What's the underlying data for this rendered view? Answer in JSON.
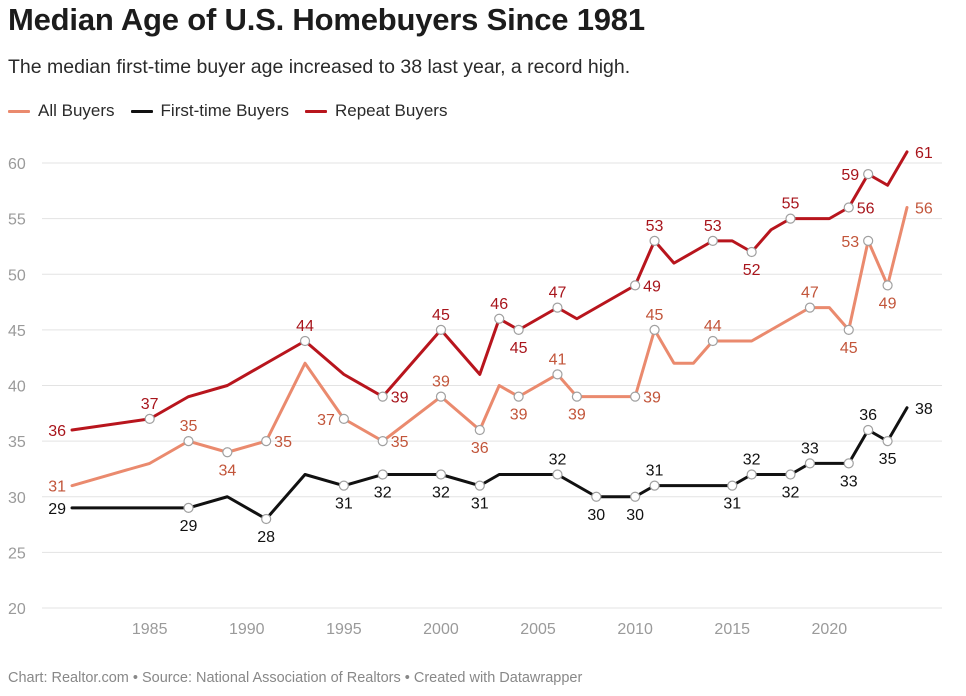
{
  "title": "Median Age of U.S. Homebuyers Since 1981",
  "subtitle": "The median first-time buyer age increased to 38 last year, a record high.",
  "footer": "Chart: Realtor.com • Source: National Association of Realtors • Created with Datawrapper",
  "colors": {
    "all": "#ea8a6e",
    "first": "#111111",
    "repeat": "#b8151d",
    "grid": "#e3e3e3",
    "tick": "#9a9a9a"
  },
  "chart_data": {
    "type": "line",
    "title": "Median Age of U.S. Homebuyers Since 1981",
    "xlabel": "",
    "ylabel": "",
    "xlim": [
      1981,
      2024
    ],
    "ylim": [
      20,
      60
    ],
    "x_ticks": [
      1985,
      1990,
      1995,
      2000,
      2005,
      2010,
      2015,
      2020
    ],
    "y_ticks": [
      20,
      25,
      30,
      35,
      40,
      45,
      50,
      55,
      60
    ],
    "legend": [
      "All Buyers",
      "First-time Buyers",
      "Repeat Buyers"
    ],
    "legend_position": "top-left",
    "series": [
      {
        "key": "all",
        "name": "All Buyers",
        "x": [
          1981,
          1985,
          1987,
          1989,
          1991,
          1993,
          1995,
          1997,
          2000,
          2002,
          2003,
          2004,
          2006,
          2007,
          2008,
          2010,
          2011,
          2012,
          2013,
          2014,
          2015,
          2016,
          2017,
          2018,
          2019,
          2020,
          2021,
          2022,
          2023,
          2024
        ],
        "values": [
          31,
          33,
          35,
          34,
          35,
          42,
          37,
          35,
          39,
          36,
          40,
          39,
          41,
          39,
          39,
          39,
          45,
          42,
          42,
          44,
          44,
          44,
          45,
          46,
          47,
          47,
          45,
          53,
          49,
          56
        ],
        "labels": [
          {
            "x": 1981,
            "text": "31",
            "pos": "left"
          },
          {
            "x": 1987,
            "text": "35",
            "pos": "above"
          },
          {
            "x": 1989,
            "text": "34",
            "pos": "below"
          },
          {
            "x": 1991,
            "text": "35",
            "pos": "right"
          },
          {
            "x": 1995,
            "text": "37",
            "pos": "left"
          },
          {
            "x": 1997,
            "text": "35",
            "pos": "right"
          },
          {
            "x": 2000,
            "text": "39",
            "pos": "above"
          },
          {
            "x": 2002,
            "text": "36",
            "pos": "below"
          },
          {
            "x": 2004,
            "text": "39",
            "pos": "below"
          },
          {
            "x": 2006,
            "text": "41",
            "pos": "above"
          },
          {
            "x": 2007,
            "text": "39",
            "pos": "below"
          },
          {
            "x": 2010,
            "text": "39",
            "pos": "right"
          },
          {
            "x": 2011,
            "text": "45",
            "pos": "above"
          },
          {
            "x": 2014,
            "text": "44",
            "pos": "above"
          },
          {
            "x": 2019,
            "text": "47",
            "pos": "above"
          },
          {
            "x": 2021,
            "text": "45",
            "pos": "below"
          },
          {
            "x": 2022,
            "text": "53",
            "pos": "left"
          },
          {
            "x": 2023,
            "text": "49",
            "pos": "below"
          },
          {
            "x": 2024,
            "text": "56",
            "pos": "right"
          }
        ]
      },
      {
        "key": "first",
        "name": "First-time Buyers",
        "x": [
          1981,
          1985,
          1987,
          1989,
          1991,
          1993,
          1995,
          1997,
          2000,
          2002,
          2003,
          2004,
          2006,
          2008,
          2010,
          2011,
          2012,
          2013,
          2014,
          2015,
          2016,
          2017,
          2018,
          2019,
          2020,
          2021,
          2022,
          2023,
          2024
        ],
        "values": [
          29,
          29,
          29,
          30,
          28,
          32,
          31,
          32,
          32,
          31,
          32,
          32,
          32,
          30,
          30,
          31,
          31,
          31,
          31,
          31,
          32,
          32,
          32,
          33,
          33,
          33,
          36,
          35,
          38
        ],
        "labels": [
          {
            "x": 1981,
            "text": "29",
            "pos": "left"
          },
          {
            "x": 1987,
            "text": "29",
            "pos": "below"
          },
          {
            "x": 1991,
            "text": "28",
            "pos": "below"
          },
          {
            "x": 1995,
            "text": "31",
            "pos": "below"
          },
          {
            "x": 1997,
            "text": "32",
            "pos": "below"
          },
          {
            "x": 2000,
            "text": "32",
            "pos": "below"
          },
          {
            "x": 2002,
            "text": "31",
            "pos": "below"
          },
          {
            "x": 2006,
            "text": "32",
            "pos": "above"
          },
          {
            "x": 2008,
            "text": "30",
            "pos": "below"
          },
          {
            "x": 2010,
            "text": "30",
            "pos": "below"
          },
          {
            "x": 2011,
            "text": "31",
            "pos": "above"
          },
          {
            "x": 2015,
            "text": "31",
            "pos": "below"
          },
          {
            "x": 2016,
            "text": "32",
            "pos": "above"
          },
          {
            "x": 2018,
            "text": "32",
            "pos": "below"
          },
          {
            "x": 2019,
            "text": "33",
            "pos": "above"
          },
          {
            "x": 2021,
            "text": "33",
            "pos": "below"
          },
          {
            "x": 2022,
            "text": "36",
            "pos": "above"
          },
          {
            "x": 2023,
            "text": "35",
            "pos": "below"
          },
          {
            "x": 2024,
            "text": "38",
            "pos": "right"
          }
        ]
      },
      {
        "key": "repeat",
        "name": "Repeat Buyers",
        "x": [
          1981,
          1985,
          1987,
          1989,
          1991,
          1993,
          1995,
          1997,
          2000,
          2002,
          2003,
          2004,
          2006,
          2007,
          2008,
          2010,
          2011,
          2012,
          2013,
          2014,
          2015,
          2016,
          2017,
          2018,
          2019,
          2020,
          2021,
          2022,
          2023,
          2024
        ],
        "values": [
          36,
          37,
          39,
          40,
          42,
          44,
          41,
          39,
          45,
          41,
          46,
          45,
          47,
          46,
          47,
          49,
          53,
          51,
          52,
          53,
          53,
          52,
          54,
          55,
          55,
          55,
          56,
          59,
          58,
          61
        ],
        "labels": [
          {
            "x": 1981,
            "text": "36",
            "pos": "left"
          },
          {
            "x": 1985,
            "text": "37",
            "pos": "above"
          },
          {
            "x": 1993,
            "text": "44",
            "pos": "above"
          },
          {
            "x": 1997,
            "text": "39",
            "pos": "right"
          },
          {
            "x": 2000,
            "text": "45",
            "pos": "above"
          },
          {
            "x": 2003,
            "text": "46",
            "pos": "above"
          },
          {
            "x": 2004,
            "text": "45",
            "pos": "below"
          },
          {
            "x": 2006,
            "text": "47",
            "pos": "above"
          },
          {
            "x": 2010,
            "text": "49",
            "pos": "right"
          },
          {
            "x": 2011,
            "text": "53",
            "pos": "above"
          },
          {
            "x": 2014,
            "text": "53",
            "pos": "above"
          },
          {
            "x": 2016,
            "text": "52",
            "pos": "below"
          },
          {
            "x": 2018,
            "text": "55",
            "pos": "above"
          },
          {
            "x": 2021,
            "text": "56",
            "pos": "right"
          },
          {
            "x": 2022,
            "text": "59",
            "pos": "left"
          },
          {
            "x": 2024,
            "text": "61",
            "pos": "right"
          }
        ]
      }
    ]
  }
}
